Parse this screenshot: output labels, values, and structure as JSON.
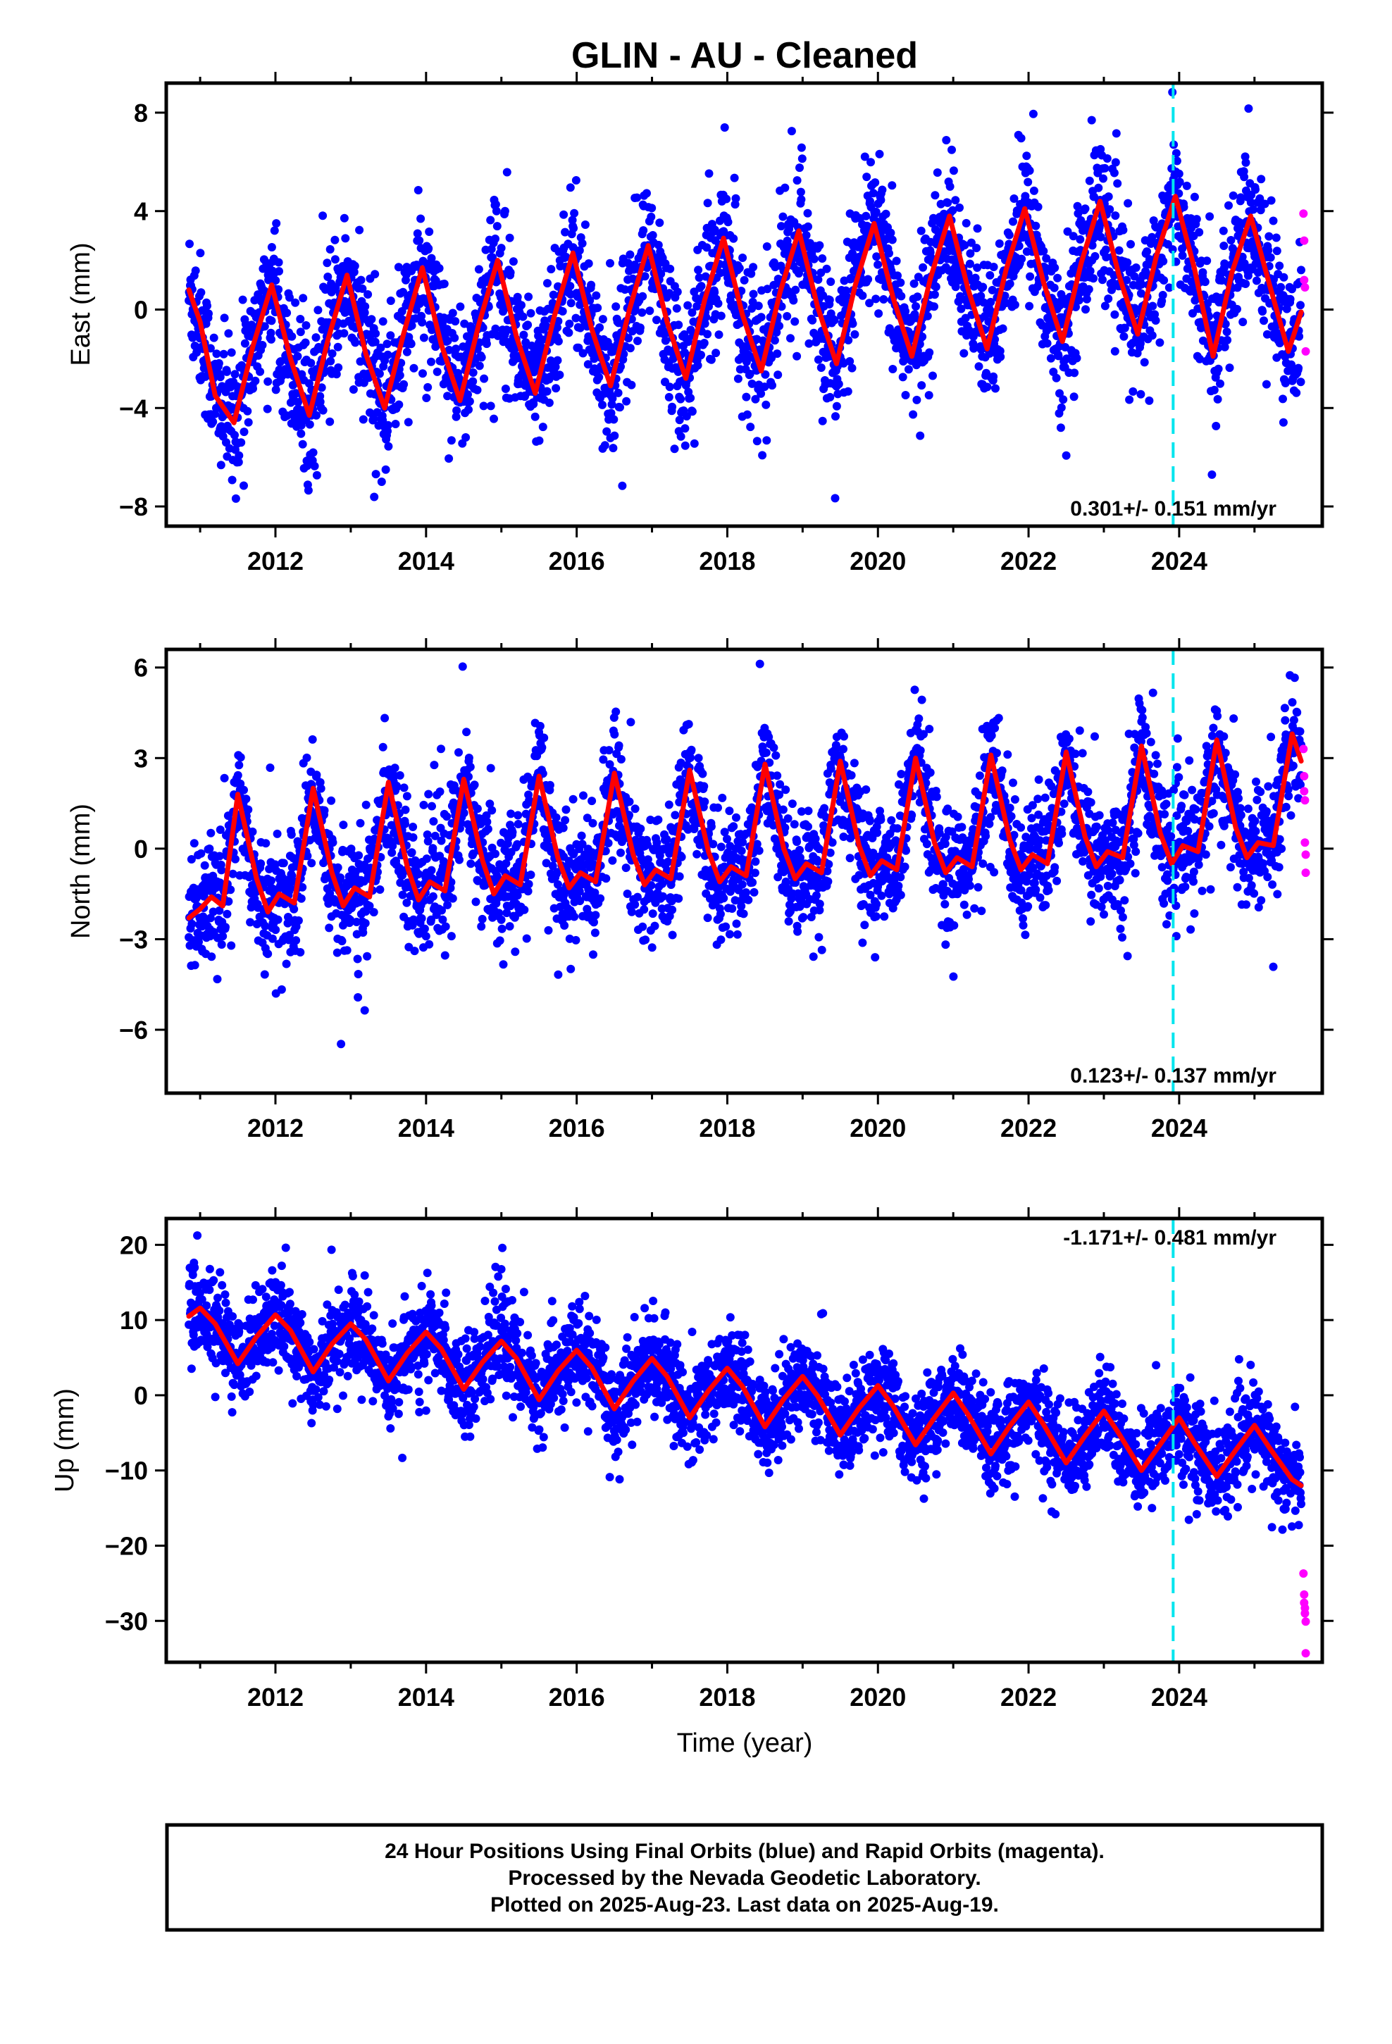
{
  "title": "GLIN  - AU - Cleaned",
  "xlabel": "Time (year)",
  "footer": {
    "line1": "24 Hour Positions Using Final Orbits (blue) and Rapid Orbits (magenta).",
    "line2": "Processed by the Nevada Geodetic Laboratory.",
    "line3": "Plotted on 2025-Aug-23. Last data on 2025-Aug-19."
  },
  "colors": {
    "final": "#0000ff",
    "rapid": "#ff00ff",
    "model": "#ff0000",
    "marker": "#00e5ee"
  },
  "chart_data": [
    {
      "type": "scatter",
      "name": "east",
      "ylabel": "East (mm)",
      "rate_label": "0.301+/- 0.151 mm/yr",
      "xlim": [
        2010.55,
        2025.9
      ],
      "ylim": [
        -8.8,
        9.2
      ],
      "xticks": [
        2012,
        2014,
        2016,
        2018,
        2020,
        2022,
        2024
      ],
      "yticks": [
        -8,
        -4,
        0,
        4,
        8
      ],
      "marker_line_x": 2023.92,
      "series": [
        {
          "role": "model",
          "x": [
            2010.85,
            2011.0,
            2011.2,
            2011.45,
            2011.7,
            2011.95,
            2012.2,
            2012.45,
            2012.7,
            2012.95,
            2013.2,
            2013.45,
            2013.7,
            2013.95,
            2014.2,
            2014.45,
            2014.7,
            2014.95,
            2015.2,
            2015.45,
            2015.7,
            2015.95,
            2016.2,
            2016.45,
            2016.7,
            2016.95,
            2017.2,
            2017.45,
            2017.7,
            2017.95,
            2018.2,
            2018.45,
            2018.7,
            2018.95,
            2019.2,
            2019.45,
            2019.7,
            2019.95,
            2020.2,
            2020.45,
            2020.7,
            2020.95,
            2021.2,
            2021.45,
            2021.7,
            2021.95,
            2022.2,
            2022.45,
            2022.7,
            2022.95,
            2023.2,
            2023.45,
            2023.7,
            2023.95,
            2024.2,
            2024.45,
            2024.7,
            2024.95,
            2025.2,
            2025.45,
            2025.62
          ],
          "y": [
            0.8,
            -0.5,
            -3.5,
            -4.6,
            -1.5,
            1.0,
            -2.0,
            -4.3,
            -1.2,
            1.4,
            -1.8,
            -4.0,
            -1.0,
            1.7,
            -1.4,
            -3.7,
            -0.6,
            2.0,
            -1.1,
            -3.4,
            -0.3,
            2.3,
            -0.8,
            -3.1,
            0.0,
            2.6,
            -0.5,
            -2.8,
            0.4,
            2.9,
            -0.2,
            -2.5,
            0.7,
            3.2,
            0.1,
            -2.2,
            1.0,
            3.5,
            0.5,
            -1.9,
            1.3,
            3.8,
            0.8,
            -1.6,
            1.6,
            4.1,
            1.1,
            -1.3,
            1.9,
            4.4,
            1.4,
            -1.0,
            2.2,
            4.6,
            1.7,
            -1.9,
            1.5,
            3.8,
            1.0,
            -1.7,
            -0.1
          ]
        },
        {
          "role": "rapid",
          "x": [
            2025.65,
            2025.66,
            2025.66,
            2025.67,
            2025.68
          ],
          "y": [
            3.9,
            2.8,
            1.2,
            0.9,
            -1.7
          ]
        }
      ]
    },
    {
      "type": "scatter",
      "name": "north",
      "ylabel": "North (mm)",
      "rate_label": "0.123+/- 0.137 mm/yr",
      "xlim": [
        2010.55,
        2025.9
      ],
      "ylim": [
        -8.1,
        6.6
      ],
      "xticks": [
        2012,
        2014,
        2016,
        2018,
        2020,
        2022,
        2024
      ],
      "yticks": [
        -6,
        -3,
        0,
        3,
        6
      ],
      "marker_line_x": 2023.92,
      "series": [
        {
          "role": "model",
          "x": [
            2010.85,
            2011.0,
            2011.15,
            2011.3,
            2011.5,
            2011.75,
            2011.9,
            2012.05,
            2012.25,
            2012.5,
            2012.75,
            2012.9,
            2013.05,
            2013.25,
            2013.5,
            2013.75,
            2013.9,
            2014.05,
            2014.25,
            2014.5,
            2014.75,
            2014.9,
            2015.05,
            2015.25,
            2015.5,
            2015.75,
            2015.9,
            2016.05,
            2016.25,
            2016.5,
            2016.75,
            2016.9,
            2017.05,
            2017.25,
            2017.5,
            2017.75,
            2017.9,
            2018.05,
            2018.25,
            2018.5,
            2018.75,
            2018.9,
            2019.05,
            2019.25,
            2019.5,
            2019.75,
            2019.9,
            2020.05,
            2020.25,
            2020.5,
            2020.75,
            2020.9,
            2021.05,
            2021.25,
            2021.5,
            2021.75,
            2021.9,
            2022.05,
            2022.25,
            2022.5,
            2022.75,
            2022.9,
            2023.05,
            2023.25,
            2023.5,
            2023.75,
            2023.9,
            2024.05,
            2024.25,
            2024.5,
            2024.75,
            2024.9,
            2025.05,
            2025.25,
            2025.5,
            2025.62
          ],
          "y": [
            -2.3,
            -2.0,
            -1.6,
            -1.9,
            1.8,
            -1.0,
            -2.1,
            -1.5,
            -1.8,
            2.0,
            -0.8,
            -1.9,
            -1.3,
            -1.6,
            2.2,
            -0.6,
            -1.7,
            -1.1,
            -1.4,
            2.3,
            -0.4,
            -1.5,
            -0.9,
            -1.2,
            2.4,
            -0.3,
            -1.3,
            -0.8,
            -1.1,
            2.5,
            -0.2,
            -1.2,
            -0.7,
            -1.0,
            2.6,
            -0.1,
            -1.1,
            -0.6,
            -0.9,
            2.8,
            0.0,
            -1.0,
            -0.5,
            -0.8,
            2.9,
            0.1,
            -0.9,
            -0.4,
            -0.7,
            3.0,
            0.2,
            -0.8,
            -0.3,
            -0.6,
            3.1,
            0.3,
            -0.7,
            -0.2,
            -0.5,
            3.2,
            0.4,
            -0.6,
            -0.1,
            -0.3,
            3.4,
            0.5,
            -0.5,
            0.1,
            -0.1,
            3.6,
            0.7,
            -0.3,
            0.2,
            0.1,
            3.8,
            2.9
          ]
        },
        {
          "role": "rapid",
          "x": [
            2025.65,
            2025.66,
            2025.66,
            2025.67,
            2025.67,
            2025.68,
            2025.68
          ],
          "y": [
            3.3,
            2.4,
            1.9,
            1.6,
            0.2,
            -0.2,
            -0.8
          ]
        }
      ]
    },
    {
      "type": "scatter",
      "name": "up",
      "ylabel": "Up (mm)",
      "rate_label": "-1.171+/- 0.481 mm/yr",
      "xlim": [
        2010.55,
        2025.9
      ],
      "ylim": [
        -35.5,
        23.5
      ],
      "xticks": [
        2012,
        2014,
        2016,
        2018,
        2020,
        2022,
        2024
      ],
      "yticks": [
        -30,
        -20,
        -10,
        0,
        10,
        20
      ],
      "marker_line_x": 2023.92,
      "series": [
        {
          "role": "model",
          "x": [
            2010.85,
            2011.0,
            2011.2,
            2011.5,
            2011.75,
            2012.0,
            2012.2,
            2012.5,
            2012.75,
            2013.0,
            2013.2,
            2013.5,
            2013.75,
            2014.0,
            2014.2,
            2014.5,
            2014.75,
            2015.0,
            2015.2,
            2015.5,
            2015.75,
            2016.0,
            2016.2,
            2016.5,
            2016.75,
            2017.0,
            2017.2,
            2017.5,
            2017.75,
            2018.0,
            2018.2,
            2018.5,
            2018.75,
            2019.0,
            2019.2,
            2019.5,
            2019.75,
            2020.0,
            2020.2,
            2020.5,
            2020.75,
            2021.0,
            2021.2,
            2021.5,
            2021.75,
            2022.0,
            2022.2,
            2022.5,
            2022.75,
            2023.0,
            2023.2,
            2023.5,
            2023.75,
            2024.0,
            2024.2,
            2024.5,
            2024.75,
            2025.0,
            2025.2,
            2025.5,
            2025.62
          ],
          "y": [
            10.5,
            11.6,
            9.5,
            4.2,
            7.8,
            10.7,
            8.6,
            3.1,
            6.8,
            9.5,
            7.4,
            1.9,
            5.6,
            8.4,
            6.2,
            0.8,
            4.4,
            7.2,
            4.9,
            -0.6,
            3.2,
            6.0,
            3.7,
            -1.8,
            1.9,
            4.9,
            2.5,
            -3.0,
            0.6,
            3.6,
            1.2,
            -4.2,
            -0.5,
            2.5,
            -0.1,
            -5.3,
            -1.7,
            1.3,
            -1.4,
            -6.6,
            -3.0,
            0.3,
            -2.6,
            -7.8,
            -4.1,
            -0.9,
            -3.9,
            -9.0,
            -5.4,
            -2.1,
            -5.1,
            -10.0,
            -6.5,
            -3.0,
            -6.3,
            -10.8,
            -7.3,
            -4.0,
            -7.0,
            -11.2,
            -12.0
          ]
        },
        {
          "role": "rapid",
          "x": [
            2025.65,
            2025.66,
            2025.66,
            2025.67,
            2025.67,
            2025.68,
            2025.68
          ],
          "y": [
            -23.7,
            -26.5,
            -27.6,
            -28.3,
            -29.0,
            -30.1,
            -34.3
          ]
        }
      ]
    }
  ]
}
